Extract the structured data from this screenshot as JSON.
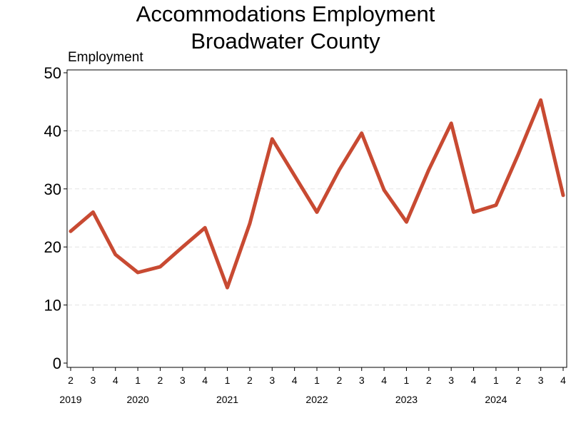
{
  "chart_data": {
    "type": "line",
    "title_line1": "Accommodations Employment",
    "title_line2": "Broadwater County",
    "ylabel": "Employment",
    "xlabel": "",
    "ylim": [
      0,
      50
    ],
    "yticks": [
      0,
      10,
      20,
      30,
      40,
      50
    ],
    "grid": true,
    "legend": "none",
    "line_color": "#c84a32",
    "categories": [
      "2",
      "3",
      "4",
      "1",
      "2",
      "3",
      "4",
      "1",
      "2",
      "3",
      "4",
      "1",
      "2",
      "3",
      "4",
      "1",
      "2",
      "3",
      "4",
      "1",
      "2",
      "3",
      "4"
    ],
    "years": [
      {
        "label": "2019",
        "index": 0
      },
      {
        "label": "2020",
        "index": 3
      },
      {
        "label": "2021",
        "index": 7
      },
      {
        "label": "2022",
        "index": 11
      },
      {
        "label": "2023",
        "index": 15
      },
      {
        "label": "2024",
        "index": 19
      }
    ],
    "series": [
      {
        "values": [
          22.7,
          26.0,
          18.7,
          15.6,
          16.6,
          20.0,
          23.3,
          13.0,
          24.0,
          38.6,
          32.3,
          26.0,
          33.3,
          39.6,
          29.8,
          24.3,
          33.3,
          41.3,
          26.0,
          27.2,
          36.0,
          45.3,
          28.9
        ]
      }
    ]
  }
}
